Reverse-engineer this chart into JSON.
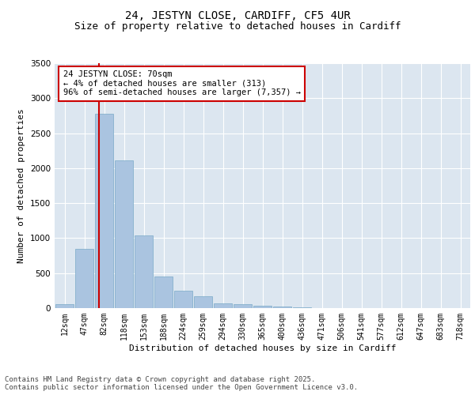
{
  "title": "24, JESTYN CLOSE, CARDIFF, CF5 4UR",
  "subtitle": "Size of property relative to detached houses in Cardiff",
  "xlabel": "Distribution of detached houses by size in Cardiff",
  "ylabel": "Number of detached properties",
  "categories": [
    "12sqm",
    "47sqm",
    "82sqm",
    "118sqm",
    "153sqm",
    "188sqm",
    "224sqm",
    "259sqm",
    "294sqm",
    "330sqm",
    "365sqm",
    "400sqm",
    "436sqm",
    "471sqm",
    "506sqm",
    "541sqm",
    "577sqm",
    "612sqm",
    "647sqm",
    "683sqm",
    "718sqm"
  ],
  "values": [
    60,
    850,
    2780,
    2110,
    1040,
    455,
    250,
    165,
    70,
    55,
    30,
    18,
    10,
    5,
    2,
    1,
    0,
    0,
    0,
    0,
    0
  ],
  "bar_color": "#aac4e0",
  "bar_edgecolor": "#7aaac8",
  "annotation_text": "24 JESTYN CLOSE: 70sqm\n← 4% of detached houses are smaller (313)\n96% of semi-detached houses are larger (7,357) →",
  "annotation_box_color": "#ffffff",
  "annotation_box_edgecolor": "#cc0000",
  "vline_color": "#cc0000",
  "ylim": [
    0,
    3500
  ],
  "background_color": "#dce6f0",
  "footer_text": "Contains HM Land Registry data © Crown copyright and database right 2025.\nContains public sector information licensed under the Open Government Licence v3.0.",
  "title_fontsize": 10,
  "subtitle_fontsize": 9,
  "axis_label_fontsize": 8,
  "tick_fontsize": 7,
  "annotation_fontsize": 7.5,
  "footer_fontsize": 6.5
}
